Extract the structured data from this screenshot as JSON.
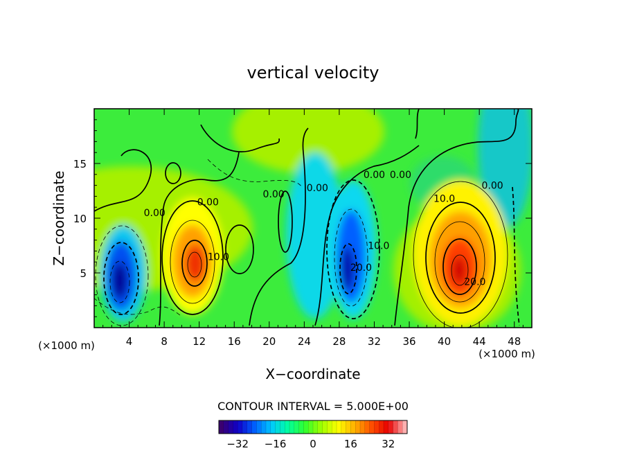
{
  "chart_data": {
    "type": "heatmap",
    "title": "vertical velocity",
    "xlabel": "X−coordinate",
    "ylabel": "Z−coordinate",
    "x_unit_left": "(×1000 m)",
    "x_unit_right": "(×1000 m)",
    "xlim": [
      0,
      50
    ],
    "ylim": [
      0,
      20
    ],
    "x_ticks": [
      4,
      8,
      12,
      16,
      20,
      24,
      28,
      32,
      36,
      40,
      44,
      48
    ],
    "y_ticks": [
      5,
      10,
      15
    ],
    "contour_interval_text": "CONTOUR INTERVAL = 5.000E+00",
    "colorbar": {
      "range": [
        -40,
        40
      ],
      "ticks": [
        "−32",
        "−16",
        "0",
        "16",
        "32"
      ],
      "tick_values": [
        -32,
        -16,
        0,
        16,
        32
      ],
      "colors": [
        "#3a0070",
        "#1000c8",
        "#0060ff",
        "#00c8ff",
        "#00ffa0",
        "#30ff30",
        "#a0ff00",
        "#ffff00",
        "#ffb000",
        "#ff5000",
        "#e80000",
        "#ffb0b0"
      ]
    },
    "contour_labels": [
      {
        "text": "0.00",
        "x": 13.0,
        "y": 11.5
      },
      {
        "text": "0.00",
        "x": 6.9,
        "y": 10.5
      },
      {
        "text": "0.00",
        "x": 20.5,
        "y": 12.2
      },
      {
        "text": "0.00",
        "x": 25.5,
        "y": 12.8
      },
      {
        "text": "0.00",
        "x": 32.0,
        "y": 14.0
      },
      {
        "text": "0.00",
        "x": 35.0,
        "y": 14.0
      },
      {
        "text": "0.00",
        "x": 45.5,
        "y": 13.0
      },
      {
        "text": "10.0",
        "x": 14.2,
        "y": 6.5
      },
      {
        "text": "10.0",
        "x": 32.5,
        "y": 7.5
      },
      {
        "text": "10.0",
        "x": 40.0,
        "y": 11.8
      },
      {
        "text": "20.0",
        "x": 30.5,
        "y": 5.5
      },
      {
        "text": "20.0",
        "x": 43.5,
        "y": 4.2
      }
    ],
    "features": [
      {
        "x": 3.5,
        "y": 4.5,
        "value": -30
      },
      {
        "x": 11.5,
        "y": 6.0,
        "value": 30
      },
      {
        "x": 29.5,
        "y": 5.5,
        "value": -26
      },
      {
        "x": 41.5,
        "y": 5.3,
        "value": 33
      }
    ]
  }
}
